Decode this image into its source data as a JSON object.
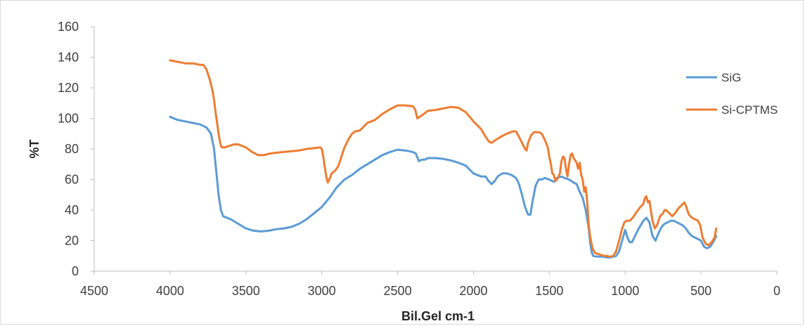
{
  "chart_data": {
    "type": "line",
    "xlabel": "Bil.Gel cm-1",
    "ylabel": "%T",
    "xlim": [
      4500,
      0
    ],
    "ylim": [
      0,
      160
    ],
    "x_ticks": [
      "4500",
      "4000",
      "3500",
      "3000",
      "2500",
      "2000",
      "1500",
      "1000",
      "500",
      "0"
    ],
    "y_ticks": [
      "0",
      "20",
      "40",
      "60",
      "80",
      "100",
      "120",
      "140",
      "160"
    ],
    "grid": false,
    "legend_position": "right",
    "series": [
      {
        "name": "SiG",
        "color": "#5b9bd5",
        "points": [
          [
            4000,
            101
          ],
          [
            3950,
            99
          ],
          [
            3900,
            98
          ],
          [
            3850,
            97
          ],
          [
            3800,
            96
          ],
          [
            3760,
            94
          ],
          [
            3730,
            90
          ],
          [
            3710,
            80
          ],
          [
            3700,
            70
          ],
          [
            3690,
            60
          ],
          [
            3680,
            50
          ],
          [
            3665,
            40
          ],
          [
            3650,
            36
          ],
          [
            3600,
            34
          ],
          [
            3550,
            31
          ],
          [
            3500,
            28
          ],
          [
            3450,
            26.5
          ],
          [
            3400,
            26
          ],
          [
            3350,
            26.5
          ],
          [
            3300,
            27.5
          ],
          [
            3250,
            28
          ],
          [
            3200,
            29
          ],
          [
            3150,
            31
          ],
          [
            3100,
            34
          ],
          [
            3050,
            38
          ],
          [
            3000,
            42
          ],
          [
            2950,
            48
          ],
          [
            2900,
            55
          ],
          [
            2850,
            60
          ],
          [
            2800,
            63
          ],
          [
            2750,
            67
          ],
          [
            2700,
            70
          ],
          [
            2650,
            73
          ],
          [
            2600,
            76
          ],
          [
            2550,
            78
          ],
          [
            2500,
            79.5
          ],
          [
            2450,
            79
          ],
          [
            2400,
            78
          ],
          [
            2380,
            77
          ],
          [
            2360,
            72
          ],
          [
            2340,
            73
          ],
          [
            2320,
            73
          ],
          [
            2300,
            74
          ],
          [
            2250,
            74
          ],
          [
            2200,
            73.5
          ],
          [
            2150,
            72.5
          ],
          [
            2100,
            71
          ],
          [
            2050,
            69
          ],
          [
            2000,
            64
          ],
          [
            1950,
            62
          ],
          [
            1920,
            62
          ],
          [
            1900,
            59
          ],
          [
            1880,
            57
          ],
          [
            1860,
            59
          ],
          [
            1840,
            62
          ],
          [
            1810,
            64
          ],
          [
            1780,
            64
          ],
          [
            1750,
            63
          ],
          [
            1720,
            61
          ],
          [
            1700,
            57
          ],
          [
            1680,
            50
          ],
          [
            1660,
            42
          ],
          [
            1640,
            37
          ],
          [
            1625,
            37
          ],
          [
            1610,
            46
          ],
          [
            1590,
            56
          ],
          [
            1570,
            60
          ],
          [
            1550,
            60
          ],
          [
            1530,
            61
          ],
          [
            1500,
            60
          ],
          [
            1470,
            58.5
          ],
          [
            1450,
            61
          ],
          [
            1420,
            62
          ],
          [
            1400,
            61
          ],
          [
            1370,
            60
          ],
          [
            1340,
            58
          ],
          [
            1320,
            57
          ],
          [
            1300,
            52
          ],
          [
            1280,
            48
          ],
          [
            1260,
            40
          ],
          [
            1240,
            28
          ],
          [
            1230,
            18
          ],
          [
            1220,
            12
          ],
          [
            1210,
            10
          ],
          [
            1180,
            9.5
          ],
          [
            1150,
            9.5
          ],
          [
            1120,
            9
          ],
          [
            1100,
            9
          ],
          [
            1080,
            9.5
          ],
          [
            1060,
            10
          ],
          [
            1040,
            13
          ],
          [
            1020,
            20
          ],
          [
            1000,
            27
          ],
          [
            985,
            22
          ],
          [
            970,
            19
          ],
          [
            955,
            19
          ],
          [
            935,
            23
          ],
          [
            910,
            28
          ],
          [
            880,
            33
          ],
          [
            860,
            35
          ],
          [
            840,
            32
          ],
          [
            820,
            23
          ],
          [
            800,
            20
          ],
          [
            780,
            25
          ],
          [
            760,
            29
          ],
          [
            740,
            31
          ],
          [
            720,
            32
          ],
          [
            700,
            33
          ],
          [
            680,
            33
          ],
          [
            660,
            32
          ],
          [
            640,
            31
          ],
          [
            620,
            30
          ],
          [
            600,
            28
          ],
          [
            580,
            25
          ],
          [
            560,
            23
          ],
          [
            540,
            22
          ],
          [
            520,
            21
          ],
          [
            500,
            20
          ],
          [
            480,
            16
          ],
          [
            460,
            15
          ],
          [
            440,
            16
          ],
          [
            420,
            19
          ],
          [
            400,
            23
          ]
        ]
      },
      {
        "name": "Si-CPTMS",
        "color": "#ed7d31",
        "points": [
          [
            4000,
            138
          ],
          [
            3950,
            137
          ],
          [
            3900,
            136
          ],
          [
            3850,
            136
          ],
          [
            3800,
            135
          ],
          [
            3780,
            135
          ],
          [
            3760,
            132
          ],
          [
            3740,
            126
          ],
          [
            3720,
            118
          ],
          [
            3710,
            112
          ],
          [
            3700,
            104
          ],
          [
            3690,
            97
          ],
          [
            3680,
            90
          ],
          [
            3670,
            84
          ],
          [
            3660,
            81
          ],
          [
            3640,
            81
          ],
          [
            3610,
            82
          ],
          [
            3580,
            83
          ],
          [
            3550,
            83
          ],
          [
            3500,
            81
          ],
          [
            3460,
            78
          ],
          [
            3420,
            76
          ],
          [
            3380,
            76
          ],
          [
            3340,
            77
          ],
          [
            3300,
            77.5
          ],
          [
            3250,
            78
          ],
          [
            3200,
            78.5
          ],
          [
            3150,
            79
          ],
          [
            3100,
            80
          ],
          [
            3050,
            80.5
          ],
          [
            3010,
            81
          ],
          [
            3000,
            80
          ],
          [
            2990,
            75
          ],
          [
            2980,
            68
          ],
          [
            2970,
            62
          ],
          [
            2960,
            58
          ],
          [
            2950,
            60
          ],
          [
            2935,
            64
          ],
          [
            2910,
            66
          ],
          [
            2890,
            69
          ],
          [
            2870,
            75
          ],
          [
            2850,
            81
          ],
          [
            2820,
            87
          ],
          [
            2800,
            90
          ],
          [
            2780,
            91.5
          ],
          [
            2750,
            92
          ],
          [
            2720,
            95
          ],
          [
            2700,
            97
          ],
          [
            2650,
            99
          ],
          [
            2600,
            103
          ],
          [
            2550,
            106
          ],
          [
            2500,
            108.5
          ],
          [
            2450,
            108.5
          ],
          [
            2400,
            108
          ],
          [
            2385,
            106
          ],
          [
            2370,
            100
          ],
          [
            2355,
            101
          ],
          [
            2340,
            102
          ],
          [
            2300,
            105
          ],
          [
            2250,
            105.5
          ],
          [
            2200,
            106.5
          ],
          [
            2150,
            107.5
          ],
          [
            2100,
            107
          ],
          [
            2050,
            104
          ],
          [
            2000,
            98
          ],
          [
            1950,
            93
          ],
          [
            1920,
            88
          ],
          [
            1900,
            85
          ],
          [
            1880,
            84
          ],
          [
            1860,
            85.5
          ],
          [
            1820,
            88
          ],
          [
            1780,
            90
          ],
          [
            1740,
            91.5
          ],
          [
            1720,
            91.5
          ],
          [
            1700,
            88
          ],
          [
            1680,
            84
          ],
          [
            1660,
            80
          ],
          [
            1650,
            79
          ],
          [
            1640,
            84
          ],
          [
            1620,
            89
          ],
          [
            1600,
            91
          ],
          [
            1570,
            91
          ],
          [
            1550,
            90
          ],
          [
            1530,
            86
          ],
          [
            1510,
            81
          ],
          [
            1500,
            75
          ],
          [
            1490,
            70
          ],
          [
            1480,
            64
          ],
          [
            1470,
            63
          ],
          [
            1460,
            59
          ],
          [
            1450,
            60
          ],
          [
            1440,
            62
          ],
          [
            1430,
            64
          ],
          [
            1420,
            72
          ],
          [
            1410,
            75
          ],
          [
            1400,
            74
          ],
          [
            1390,
            67
          ],
          [
            1380,
            62
          ],
          [
            1370,
            70
          ],
          [
            1360,
            76
          ],
          [
            1350,
            77
          ],
          [
            1340,
            74
          ],
          [
            1320,
            71
          ],
          [
            1310,
            67
          ],
          [
            1300,
            71
          ],
          [
            1290,
            63
          ],
          [
            1280,
            60
          ],
          [
            1270,
            52
          ],
          [
            1260,
            55
          ],
          [
            1250,
            45
          ],
          [
            1240,
            30
          ],
          [
            1230,
            22
          ],
          [
            1215,
            15
          ],
          [
            1200,
            12
          ],
          [
            1170,
            11
          ],
          [
            1140,
            10
          ],
          [
            1120,
            10
          ],
          [
            1100,
            9.5
          ],
          [
            1080,
            10
          ],
          [
            1060,
            13
          ],
          [
            1040,
            20
          ],
          [
            1020,
            28
          ],
          [
            1005,
            32
          ],
          [
            990,
            33
          ],
          [
            970,
            33
          ],
          [
            950,
            35
          ],
          [
            930,
            38
          ],
          [
            900,
            42
          ],
          [
            880,
            44
          ],
          [
            870,
            48
          ],
          [
            860,
            49
          ],
          [
            850,
            45
          ],
          [
            840,
            46
          ],
          [
            820,
            33
          ],
          [
            805,
            28
          ],
          [
            790,
            30
          ],
          [
            770,
            36
          ],
          [
            750,
            38
          ],
          [
            740,
            40
          ],
          [
            730,
            40
          ],
          [
            710,
            38
          ],
          [
            690,
            36
          ],
          [
            670,
            38
          ],
          [
            650,
            41
          ],
          [
            630,
            43
          ],
          [
            620,
            44
          ],
          [
            610,
            45
          ],
          [
            600,
            43
          ],
          [
            580,
            37
          ],
          [
            560,
            35
          ],
          [
            540,
            34
          ],
          [
            520,
            33
          ],
          [
            505,
            30
          ],
          [
            490,
            22
          ],
          [
            470,
            18
          ],
          [
            450,
            17
          ],
          [
            430,
            19
          ],
          [
            410,
            22
          ],
          [
            400,
            28
          ]
        ]
      }
    ]
  }
}
